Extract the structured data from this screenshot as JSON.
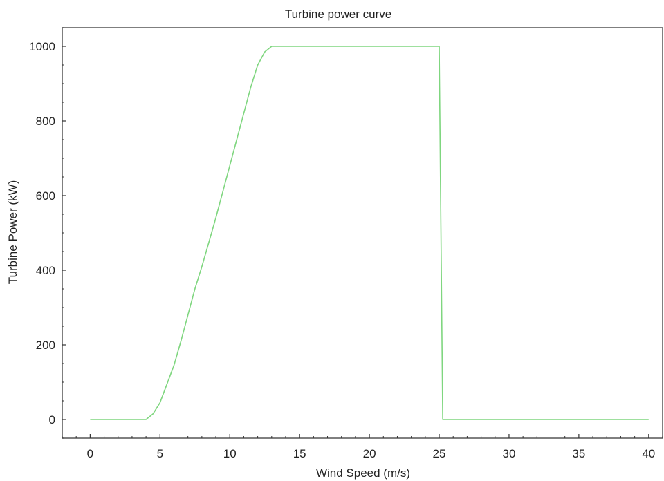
{
  "chart_data": {
    "type": "line",
    "title": "Turbine power curve",
    "xlabel": "Wind Speed (m/s)",
    "ylabel": "Turbine Power (kW)",
    "xlim": [
      -2,
      41
    ],
    "ylim": [
      -50,
      1050
    ],
    "xticks": [
      0,
      5,
      10,
      15,
      20,
      25,
      30,
      35,
      40
    ],
    "yticks": [
      0,
      200,
      400,
      600,
      800,
      1000
    ],
    "grid": false,
    "legend": "none",
    "colors": {
      "line": "#7fd67f",
      "frame": "#555555",
      "text": "#222222"
    },
    "series": [
      {
        "x": [
          0,
          4,
          4.5,
          5,
          5.5,
          6,
          6.5,
          7,
          7.5,
          8,
          8.5,
          9,
          9.5,
          10,
          10.5,
          11,
          11.5,
          12,
          12.5,
          13,
          13.5,
          25,
          25.25,
          25.5,
          40
        ],
        "values": [
          0,
          0,
          15,
          45,
          95,
          145,
          210,
          280,
          350,
          410,
          475,
          540,
          610,
          680,
          750,
          820,
          890,
          950,
          985,
          1000,
          1000,
          1000,
          0,
          0,
          0
        ]
      }
    ]
  }
}
